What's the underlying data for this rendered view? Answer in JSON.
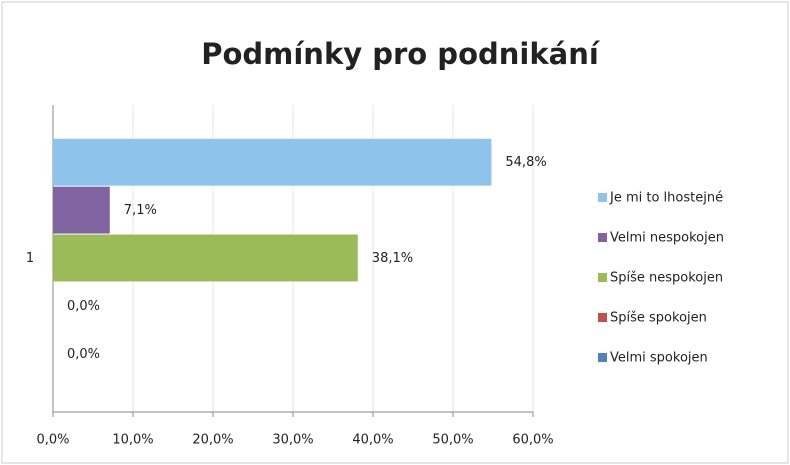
{
  "chart_data": {
    "type": "bar",
    "orientation": "horizontal",
    "title": "Podmínky pro podnikání",
    "categories": [
      "1"
    ],
    "series": [
      {
        "name": "Je mi to lhostejné",
        "color": "#8ec4ec",
        "values": [
          54.8
        ],
        "value_labels": [
          "54,8%"
        ]
      },
      {
        "name": "Velmi nespokojen",
        "color": "#8064a2",
        "values": [
          7.1
        ],
        "value_labels": [
          "7,1%"
        ]
      },
      {
        "name": "Spíše nespokojen",
        "color": "#9bbb59",
        "values": [
          38.1
        ],
        "value_labels": [
          "38,1%"
        ]
      },
      {
        "name": "Spíše spokojen",
        "color": "#c0504d",
        "values": [
          0.0
        ],
        "value_labels": [
          "0,0%"
        ]
      },
      {
        "name": "Velmi spokojen",
        "color": "#4f81bd",
        "values": [
          0.0
        ],
        "value_labels": [
          "0,0%"
        ]
      }
    ],
    "xlim": [
      0,
      60
    ],
    "xticks": [
      {
        "value": 0,
        "label": "0,0%"
      },
      {
        "value": 10,
        "label": "10,0%"
      },
      {
        "value": 20,
        "label": "20,0%"
      },
      {
        "value": 30,
        "label": "30,0%"
      },
      {
        "value": 40,
        "label": "40,0%"
      },
      {
        "value": 50,
        "label": "50,0%"
      },
      {
        "value": 60,
        "label": "60,0%"
      }
    ],
    "grid": true,
    "legend": "right"
  }
}
